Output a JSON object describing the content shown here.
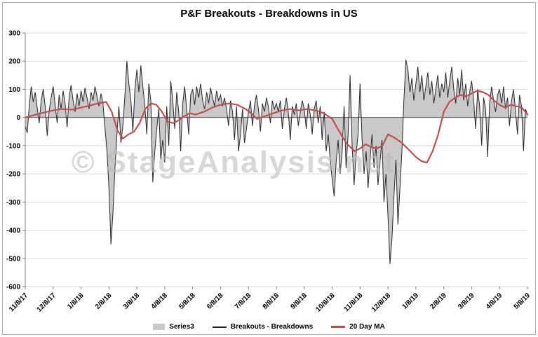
{
  "chart_data": {
    "type": "line",
    "title": "P&F Breakouts - Breakdowns in US",
    "watermark": "© StageAnalysis.net",
    "xlabel": "",
    "ylabel": "",
    "ylim": [
      -600,
      300
    ],
    "y_ticks": [
      300,
      200,
      100,
      0,
      -100,
      -200,
      -300,
      -400,
      -500,
      -600
    ],
    "x_tick_labels": [
      "11/8/17",
      "12/8/17",
      "1/8/18",
      "2/8/18",
      "3/8/18",
      "4/8/18",
      "5/8/18",
      "6/8/18",
      "7/8/18",
      "8/8/18",
      "9/8/18",
      "10/8/18",
      "11/8/18",
      "12/8/18",
      "1/8/19",
      "2/8/19",
      "3/8/19",
      "4/8/19",
      "5/8/19"
    ],
    "grid": true,
    "legend_position": "bottom",
    "legend": [
      "Series3",
      "Breakouts - Breakdowns",
      "20 Day MA"
    ],
    "colors": {
      "area": "#c9c9c9",
      "line": "#262626",
      "ma": "#c0504d",
      "gridline": "#d9d9d9",
      "axis": "#808080",
      "zero_axis": "#595959",
      "watermark": "#bdbdbd",
      "border": "#adadad"
    },
    "n_points": 253,
    "series": [
      {
        "name": "Series3",
        "render": "area",
        "color": "#c9c9c9",
        "values_same_as": "Breakouts - Breakdowns"
      },
      {
        "name": "Breakouts - Breakdowns",
        "render": "line",
        "color": "#262626",
        "values": [
          -30,
          -55,
          40,
          110,
          55,
          90,
          35,
          -20,
          60,
          100,
          40,
          -65,
          25,
          70,
          110,
          45,
          -20,
          80,
          30,
          95,
          50,
          -35,
          70,
          115,
          60,
          20,
          85,
          40,
          95,
          55,
          105,
          70,
          30,
          90,
          60,
          110,
          75,
          40,
          85,
          50,
          -40,
          -120,
          -250,
          -450,
          -340,
          -180,
          -60,
          40,
          -90,
          -30,
          80,
          200,
          120,
          60,
          -50,
          100,
          170,
          90,
          185,
          110,
          40,
          -60,
          120,
          60,
          -230,
          -120,
          -40,
          30,
          -150,
          -80,
          -160,
          40,
          -100,
          130,
          60,
          -40,
          90,
          20,
          -120,
          50,
          110,
          30,
          -60,
          80,
          100,
          45,
          110,
          70,
          120,
          60,
          30,
          90,
          50,
          105,
          70,
          40,
          95,
          60,
          80,
          40,
          70,
          30,
          -30,
          60,
          20,
          -80,
          40,
          -120,
          -60,
          30,
          -90,
          -40,
          20,
          60,
          -30,
          40,
          80,
          30,
          -50,
          50,
          20,
          70,
          40,
          -20,
          60,
          30,
          50,
          20,
          60,
          -40,
          30,
          70,
          20,
          -80,
          40,
          10,
          50,
          -30,
          20,
          60,
          30,
          -40,
          50,
          10,
          -60,
          30,
          60,
          -20,
          40,
          -80,
          20,
          -120,
          -60,
          -150,
          -220,
          -280,
          -160,
          -80,
          -200,
          -120,
          40,
          -180,
          -60,
          150,
          -100,
          -240,
          -130,
          -60,
          120,
          -80,
          -200,
          -120,
          -250,
          -150,
          -60,
          -180,
          -100,
          -240,
          -160,
          -80,
          -300,
          -200,
          -350,
          -520,
          -430,
          -280,
          -150,
          -380,
          -250,
          -120,
          60,
          205,
          170,
          90,
          140,
          60,
          120,
          180,
          90,
          150,
          60,
          110,
          160,
          80,
          130,
          50,
          100,
          150,
          70,
          120,
          90,
          160,
          70,
          130,
          180,
          100,
          50,
          140,
          80,
          170,
          60,
          120,
          40,
          90,
          130,
          60,
          -40,
          100,
          40,
          -100,
          70,
          30,
          -140,
          50,
          110,
          60,
          20,
          80,
          100,
          50,
          110,
          30,
          70,
          -30,
          60,
          100,
          20,
          -60,
          80,
          40,
          -120,
          30,
          10
        ]
      },
      {
        "name": "20 Day MA",
        "render": "line",
        "color": "#c0504d",
        "x_month_units": [
          0,
          0.3,
          0.7,
          1,
          1.3,
          1.7,
          2,
          2.3,
          2.6,
          2.9,
          3.1,
          3.3,
          3.5,
          3.7,
          3.9,
          4.1,
          4.3,
          4.5,
          4.7,
          4.9,
          5.1,
          5.3,
          5.5,
          5.7,
          5.9,
          6.1,
          6.4,
          6.7,
          7,
          7.3,
          7.6,
          7.9,
          8.1,
          8.3,
          8.6,
          8.9,
          9.2,
          9.5,
          9.8,
          10.1,
          10.4,
          10.7,
          11,
          11.2,
          11.5,
          11.8,
          12,
          12.2,
          12.4,
          12.6,
          12.8,
          13,
          13.2,
          13.5,
          13.8,
          14,
          14.2,
          14.4,
          14.6,
          14.8,
          15,
          15.2,
          15.4,
          15.6,
          15.8,
          16,
          16.2,
          16.4,
          16.6,
          16.8,
          17,
          17.2,
          17.4,
          17.6,
          17.8,
          18
        ],
        "values": [
          0,
          8,
          18,
          25,
          30,
          28,
          35,
          42,
          50,
          55,
          20,
          -45,
          -75,
          -60,
          -50,
          -20,
          30,
          50,
          45,
          20,
          -15,
          -20,
          -10,
          5,
          15,
          10,
          20,
          35,
          45,
          50,
          45,
          30,
          15,
          -5,
          5,
          15,
          25,
          30,
          25,
          30,
          25,
          15,
          -5,
          -40,
          -90,
          -120,
          -110,
          -95,
          -105,
          -110,
          -100,
          -60,
          -70,
          -90,
          -120,
          -140,
          -155,
          -160,
          -120,
          -60,
          20,
          55,
          70,
          80,
          75,
          85,
          95,
          90,
          80,
          60,
          45,
          35,
          45,
          40,
          35,
          10
        ]
      }
    ]
  }
}
